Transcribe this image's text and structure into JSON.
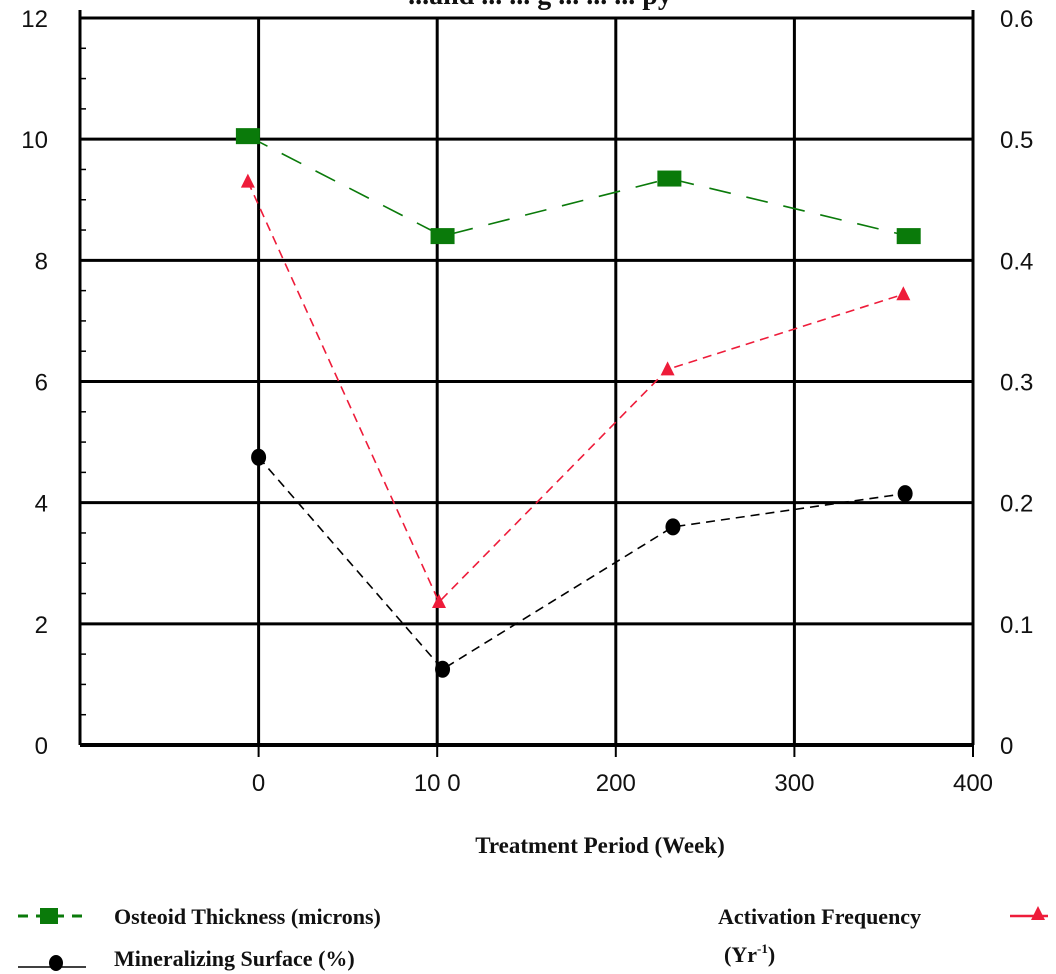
{
  "chart_data": {
    "type": "line",
    "title": "...and ... ... g ... ... ... py",
    "xlabel": "Treatment Period (Week)",
    "x_ticks": [
      "0",
      "10 0",
      "200",
      "300",
      "400"
    ],
    "x_range": [
      -100,
      400
    ],
    "y_left_ticks": [
      "0",
      "2",
      "4",
      "6",
      "8",
      "10",
      "12"
    ],
    "y_left_range": [
      0,
      12
    ],
    "y_right_ticks": [
      "0",
      "0.1",
      "0.2",
      "0.3",
      "0.4",
      "0.5",
      "0.6"
    ],
    "y_right_range": [
      0,
      0.6
    ],
    "grid": true,
    "series": [
      {
        "name": "Osteoid Thickness (microns)",
        "axis": "left",
        "marker": "square",
        "color": "#0a7a0a",
        "line_style": "long-dash",
        "points": [
          [
            -6,
            10.05
          ],
          [
            103,
            8.4
          ],
          [
            230,
            9.35
          ],
          [
            364,
            8.4
          ]
        ]
      },
      {
        "name": "Mineralizing Surface (%)",
        "axis": "left",
        "marker": "circle",
        "color": "#000000",
        "line_style": "short-dash",
        "points": [
          [
            0,
            4.75
          ],
          [
            103,
            1.25
          ],
          [
            232,
            3.6
          ],
          [
            362,
            4.15
          ]
        ]
      },
      {
        "name": "Activation Frequency (Yr-1)",
        "label_lines": [
          "Activation Frequency",
          "(Yr",
          "-1",
          ")"
        ],
        "axis": "right",
        "marker": "triangle",
        "color": "#ee1c3a",
        "line_style": "short-dash",
        "points": [
          [
            -6,
            0.465
          ],
          [
            101,
            0.118
          ],
          [
            229,
            0.31
          ],
          [
            361,
            0.372
          ]
        ]
      }
    ],
    "legend_position": "bottom"
  }
}
